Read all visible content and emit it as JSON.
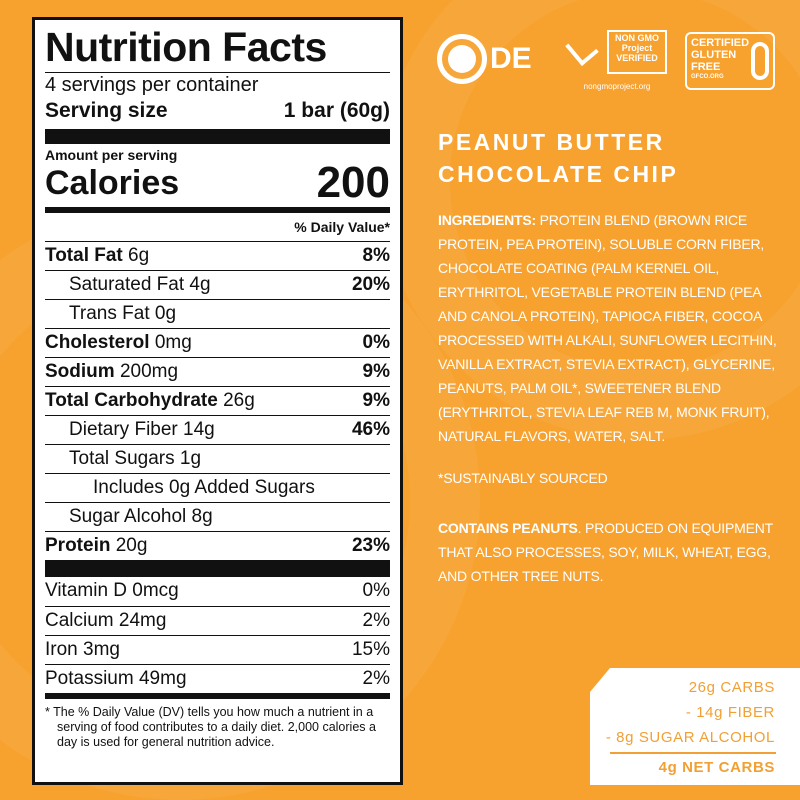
{
  "colors": {
    "background": "#F7A12E",
    "accent": "#F0A035"
  },
  "nutrition": {
    "title": "Nutrition Facts",
    "servings": "4 servings per container",
    "serving_size_label": "Serving size",
    "serving_size_value": "1 bar (60g)",
    "amount_per_serving": "Amount per serving",
    "calories_label": "Calories",
    "calories_value": "200",
    "dv_header": "% Daily Value*",
    "rows": [
      {
        "name": "Total Fat",
        "amount": "6g",
        "dv": "8%"
      },
      {
        "name": "Saturated Fat 4g",
        "dv": "20%"
      },
      {
        "name": "Trans Fat 0g",
        "dv": ""
      },
      {
        "name": "Cholesterol",
        "amount": "0mg",
        "dv": "0%"
      },
      {
        "name": "Sodium",
        "amount": "200mg",
        "dv": "9%"
      },
      {
        "name": "Total Carbohydrate",
        "amount": "26g",
        "dv": "9%"
      },
      {
        "name": "Dietary Fiber 14g",
        "dv": "46%"
      },
      {
        "name": "Total Sugars 1g",
        "dv": ""
      },
      {
        "name": "Includes 0g Added Sugars",
        "dv": ""
      },
      {
        "name": "Sugar Alcohol 8g",
        "dv": ""
      },
      {
        "name": "Protein",
        "amount": "20g",
        "dv": "23%"
      }
    ],
    "vitamins": [
      {
        "name": "Vitamin D 0mcg",
        "dv": "0%"
      },
      {
        "name": "Calcium 24mg",
        "dv": "2%"
      },
      {
        "name": "Iron 3mg",
        "dv": "15%"
      },
      {
        "name": "Potassium 49mg",
        "dv": "2%"
      }
    ],
    "footnote": "* The % Daily Value (DV) tells you how much a nutrient in a serving of food contributes to a daily diet. 2,000 calories a day is used for general nutrition advice."
  },
  "logos": {
    "kosher": "DE",
    "nongmo": "NON GMO Project VERIFIED",
    "nongmo_url": "nongmoproject.org",
    "gluten": "CERTIFIED GLUTEN FREE",
    "gluten_url": "GFCO.ORG"
  },
  "product": {
    "title_line1": "PEANUT BUTTER",
    "title_line2": "CHOCOLATE CHIP",
    "ingredients_label": "INGREDIENTS:",
    "ingredients": "PROTEIN BLEND (BROWN RICE PROTEIN, PEA PROTEIN), SOLUBLE CORN FIBER, CHOCOLATE COATING (PALM KERNEL OIL, ERYTHRITOL, VEGETABLE PROTEIN BLEND (PEA AND CANOLA PROTEIN), TAPIOCA FIBER, COCOA PROCESSED WITH ALKALI, SUNFLOWER LECITHIN, VANILLA EXTRACT, STEVIA EXTRACT), GLYCERINE, PEANUTS, PALM OIL*, SWEETENER BLEND (ERYTHRITOL, STEVIA LEAF REB M, MONK FRUIT), NATURAL FLAVORS, WATER, SALT.",
    "sustainably": "*SUSTAINABLY SOURCED",
    "contains_label": "CONTAINS PEANUTS",
    "contains_text": ". PRODUCED ON EQUIPMENT THAT ALSO PROCESSES, SOY, MILK, WHEAT, EGG, AND OTHER TREE NUTS."
  },
  "net_carbs": {
    "line1": "26g CARBS",
    "line2": "- 14g FIBER",
    "line3": "- 8g SUGAR ALCOHOL",
    "total": "4g NET CARBS"
  }
}
